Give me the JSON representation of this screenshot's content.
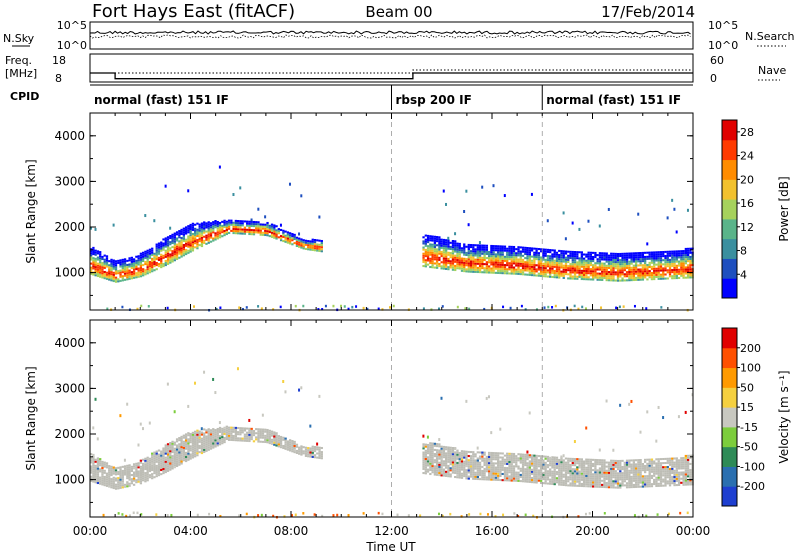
{
  "header": {
    "title": "Fort Hays East (fitACF)",
    "beam": "Beam 00",
    "date": "17/Feb/2014"
  },
  "noise_panel": {
    "left_label": "N.Sky",
    "left_ticks": [
      "10^5",
      "10^0"
    ],
    "right_ticks": [
      "10^5",
      "10^0"
    ],
    "right_label": "N.Search"
  },
  "freq_panel": {
    "left_label_line1": "Freq.",
    "left_label_line2": "[MHz]",
    "left_ticks": [
      "18",
      "8"
    ],
    "right_ticks": [
      "60",
      "0"
    ],
    "right_label": "Nave"
  },
  "cpid": {
    "label": "CPID",
    "segments": [
      {
        "start_hour": 0,
        "end_hour": 12.0,
        "name": "normal (fast) 151 IF"
      },
      {
        "start_hour": 12.0,
        "end_hour": 18.0,
        "name": "rbsp 200 IF"
      },
      {
        "start_hour": 18.0,
        "end_hour": 24.0,
        "name": "normal (fast) 151 IF"
      }
    ]
  },
  "freq_series": {
    "hours": [
      0,
      1.0,
      1.0,
      12.85,
      12.85,
      24
    ],
    "mhz": [
      11.2,
      11.2,
      8.6,
      8.6,
      11.2,
      11.2
    ]
  },
  "chart_data": [
    {
      "type": "heatmap",
      "name": "power",
      "ylabel": "Slant Range [km]",
      "yticks": [
        "1000",
        "2000",
        "3000",
        "4000"
      ],
      "ylim": [
        180,
        4500
      ],
      "xlim": [
        0,
        24
      ],
      "colorbar": {
        "label": "Power [dB]",
        "ticks": [
          "4",
          "8",
          "12",
          "16",
          "20",
          "24",
          "28"
        ],
        "range": [
          0,
          30
        ],
        "colors": [
          "#0000ff",
          "#1e4fbf",
          "#3a8f9f",
          "#5ab48a",
          "#a6d25c",
          "#f2c12e",
          "#ff8c00",
          "#ff3a00",
          "#e00000"
        ]
      },
      "dashed_hours": [
        12.0,
        18.0
      ],
      "echo_band": [
        {
          "hour": 0.0,
          "center_km": 1250,
          "width_km": 600
        },
        {
          "hour": 1.0,
          "center_km": 1000,
          "width_km": 450
        },
        {
          "hour": 2.0,
          "center_km": 1150,
          "width_km": 500
        },
        {
          "hour": 3.0,
          "center_km": 1450,
          "width_km": 600
        },
        {
          "hour": 4.0,
          "center_km": 1750,
          "width_km": 600
        },
        {
          "hour": 5.5,
          "center_km": 2000,
          "width_km": 300
        },
        {
          "hour": 7.0,
          "center_km": 1950,
          "width_km": 300
        },
        {
          "hour": 8.5,
          "center_km": 1600,
          "width_km": 200
        },
        {
          "hour": 13.5,
          "center_km": 1450,
          "width_km": 700
        },
        {
          "hour": 15.0,
          "center_km": 1300,
          "width_km": 600
        },
        {
          "hour": 17.0,
          "center_km": 1250,
          "width_km": 600
        },
        {
          "hour": 19.0,
          "center_km": 1150,
          "width_km": 600
        },
        {
          "hour": 21.0,
          "center_km": 1100,
          "width_km": 600
        },
        {
          "hour": 23.0,
          "center_km": 1150,
          "width_km": 600
        },
        {
          "hour": 24.0,
          "center_km": 1200,
          "width_km": 650
        }
      ]
    },
    {
      "type": "heatmap",
      "name": "velocity",
      "ylabel": "Slant Range [km]",
      "yticks": [
        "1000",
        "2000",
        "3000",
        "4000"
      ],
      "ylim": [
        180,
        4500
      ],
      "xlim": [
        0,
        24
      ],
      "xticks": [
        "00:00",
        "04:00",
        "08:00",
        "12:00",
        "16:00",
        "20:00",
        "00:00"
      ],
      "xlabel": "Time UT",
      "colorbar": {
        "label": "Velocity [m s⁻¹]",
        "ticks": [
          "200",
          "100",
          "50",
          "15",
          "-15",
          "-50",
          "-100",
          "-200"
        ],
        "colors": [
          "#1e3fd0",
          "#2a6fb0",
          "#2e8b57",
          "#7ccd3c",
          "#c8c8c0",
          "#f5d040",
          "#ff9a00",
          "#ff5000",
          "#e00000"
        ]
      },
      "ground_scatter_color": "#bdbdb5",
      "dashed_hours": [
        12.0,
        18.0
      ]
    }
  ]
}
